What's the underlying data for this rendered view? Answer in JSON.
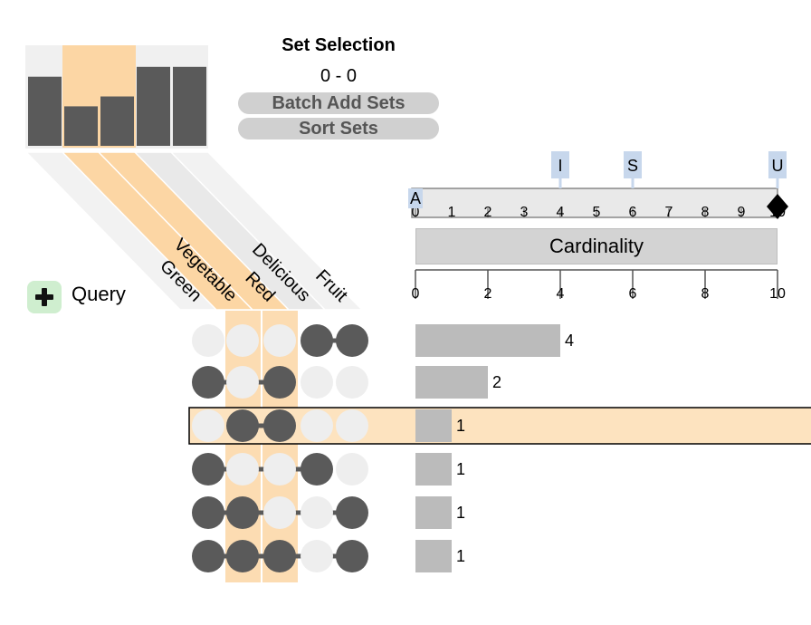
{
  "set_selection": {
    "title": "Set Selection",
    "range": "0 - 0",
    "batch_add_label": "Batch Add Sets",
    "sort_label": "Sort Sets"
  },
  "query": {
    "label": "Query"
  },
  "degree_axis": {
    "markers": [
      {
        "label": "I",
        "value": 4
      },
      {
        "label": "S",
        "value": 6
      },
      {
        "label": "U",
        "value": 10
      },
      {
        "label": "A",
        "value": 0
      }
    ],
    "ticks": [
      "0",
      "1",
      "2",
      "3",
      "4",
      "5",
      "6",
      "7",
      "8",
      "9",
      "10"
    ],
    "handle_value": 10
  },
  "cardinality_label": "Cardinality",
  "chart_data": {
    "type": "bar",
    "sets": [
      {
        "name": "Green",
        "size": 7,
        "selected": false
      },
      {
        "name": "Vegetable",
        "size": 4,
        "selected": true
      },
      {
        "name": "Red",
        "size": 5,
        "selected": true
      },
      {
        "name": "Delicious",
        "size": 8,
        "selected": false
      },
      {
        "name": "Fruit",
        "size": 8,
        "selected": false
      }
    ],
    "intersections": [
      {
        "members": [
          false,
          false,
          false,
          true,
          true
        ],
        "value": 4,
        "label": "4",
        "highlighted": false
      },
      {
        "members": [
          true,
          false,
          true,
          false,
          false
        ],
        "value": 2,
        "label": "2",
        "highlighted": false
      },
      {
        "members": [
          false,
          true,
          true,
          false,
          false
        ],
        "value": 1,
        "label": "1",
        "highlighted": true
      },
      {
        "members": [
          true,
          false,
          false,
          true,
          false
        ],
        "value": 1,
        "label": "1",
        "highlighted": false
      },
      {
        "members": [
          true,
          true,
          false,
          false,
          true
        ],
        "value": 1,
        "label": "1",
        "highlighted": false
      },
      {
        "members": [
          true,
          true,
          true,
          false,
          true
        ],
        "value": 1,
        "label": "1",
        "highlighted": false
      }
    ],
    "axis": {
      "ticks": [
        "0",
        "2",
        "4",
        "6",
        "8",
        "10"
      ],
      "xlim": [
        0,
        10
      ]
    },
    "colors": {
      "bar": "#bbbbbb",
      "set_bar": "#5a5a5a",
      "highlight": "#fde3bf",
      "selection": "#fcd6a4",
      "dot_on": "#5a5a5a",
      "dot_off": "#eeeeee"
    }
  }
}
